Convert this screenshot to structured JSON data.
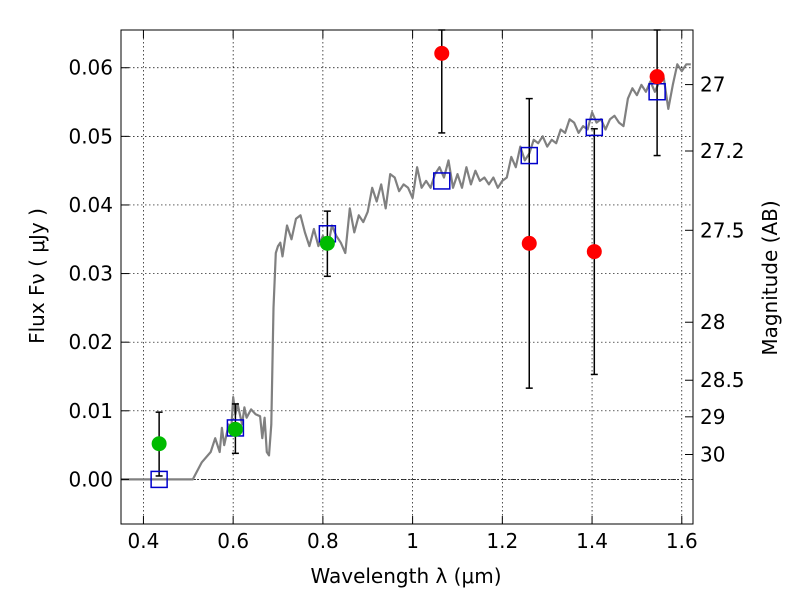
{
  "chart_data": {
    "type": "scatter",
    "title": "",
    "xlabel": "Wavelength  λ (μm)",
    "ylabel": "Flux  Fν  ( μJy )",
    "y2label": "Magnitude (AB)",
    "xlim": [
      0.35,
      1.625
    ],
    "ylim": [
      -0.0065,
      0.0655
    ],
    "grid": true,
    "x_ticks": [
      0.4,
      0.6,
      0.8,
      1.0,
      1.2,
      1.4,
      1.6
    ],
    "x_tick_labels": [
      "0.4",
      "0.6",
      "0.8",
      "1",
      "1.2",
      "1.4",
      "1.6"
    ],
    "y_ticks": [
      0.0,
      0.01,
      0.02,
      0.03,
      0.04,
      0.05,
      0.06
    ],
    "y_tick_labels": [
      "0.00",
      "0.01",
      "0.02",
      "0.03",
      "0.04",
      "0.05",
      "0.06"
    ],
    "y2_tick_labels": [
      "27",
      "27.2",
      "27.5",
      "28",
      "28.5",
      "29",
      "30"
    ],
    "colors": {
      "model": "#808080",
      "detected": "#00bb00",
      "limit": "#ff0000",
      "model_band": "#0000cc",
      "errorbar": "#000000"
    },
    "series": [
      {
        "type": "line",
        "x": [
          0.35,
          0.51,
          0.53,
          0.55,
          0.56,
          0.57,
          0.575,
          0.58,
          0.59,
          0.595,
          0.6,
          0.605,
          0.61,
          0.62,
          0.625,
          0.63,
          0.64,
          0.65,
          0.66,
          0.665,
          0.67,
          0.675,
          0.68,
          0.685,
          0.69,
          0.695,
          0.7,
          0.705,
          0.71,
          0.72,
          0.73,
          0.74,
          0.75,
          0.76,
          0.77,
          0.78,
          0.79,
          0.8,
          0.81,
          0.82,
          0.83,
          0.84,
          0.85,
          0.86,
          0.87,
          0.88,
          0.89,
          0.9,
          0.91,
          0.92,
          0.93,
          0.94,
          0.95,
          0.96,
          0.97,
          0.98,
          0.99,
          1.0,
          1.01,
          1.02,
          1.03,
          1.04,
          1.05,
          1.06,
          1.07,
          1.08,
          1.09,
          1.1,
          1.11,
          1.12,
          1.13,
          1.14,
          1.15,
          1.16,
          1.17,
          1.18,
          1.19,
          1.2,
          1.21,
          1.22,
          1.23,
          1.24,
          1.25,
          1.26,
          1.27,
          1.28,
          1.29,
          1.3,
          1.31,
          1.32,
          1.33,
          1.34,
          1.35,
          1.36,
          1.37,
          1.38,
          1.39,
          1.4,
          1.41,
          1.42,
          1.43,
          1.44,
          1.45,
          1.46,
          1.47,
          1.48,
          1.49,
          1.5,
          1.51,
          1.52,
          1.53,
          1.54,
          1.55,
          1.56,
          1.57,
          1.58,
          1.59,
          1.6,
          1.61,
          1.62
        ],
        "y": [
          0.0,
          0.0,
          0.0025,
          0.004,
          0.006,
          0.004,
          0.0075,
          0.005,
          0.008,
          0.0065,
          0.012,
          0.0095,
          0.011,
          0.008,
          0.0105,
          0.009,
          0.0102,
          0.0095,
          0.0092,
          0.006,
          0.009,
          0.004,
          0.0035,
          0.008,
          0.025,
          0.033,
          0.034,
          0.0345,
          0.0325,
          0.037,
          0.035,
          0.038,
          0.0385,
          0.036,
          0.034,
          0.0365,
          0.034,
          0.0355,
          0.0335,
          0.037,
          0.0355,
          0.0345,
          0.033,
          0.0395,
          0.036,
          0.0385,
          0.0375,
          0.039,
          0.0425,
          0.0405,
          0.043,
          0.0395,
          0.0445,
          0.044,
          0.042,
          0.043,
          0.0425,
          0.041,
          0.0455,
          0.0425,
          0.0435,
          0.0425,
          0.0445,
          0.0455,
          0.044,
          0.0465,
          0.0425,
          0.0445,
          0.0425,
          0.0455,
          0.043,
          0.045,
          0.0435,
          0.044,
          0.043,
          0.044,
          0.0425,
          0.0435,
          0.044,
          0.047,
          0.0455,
          0.0485,
          0.0465,
          0.0475,
          0.0495,
          0.049,
          0.05,
          0.0485,
          0.0495,
          0.049,
          0.051,
          0.0505,
          0.0525,
          0.052,
          0.0505,
          0.0515,
          0.051,
          0.0535,
          0.052,
          0.0525,
          0.051,
          0.0525,
          0.053,
          0.052,
          0.0515,
          0.0555,
          0.057,
          0.056,
          0.0575,
          0.0565,
          0.058,
          0.0565,
          0.058,
          0.0585,
          0.054,
          0.0575,
          0.0605,
          0.0595,
          0.0605,
          0.0605
        ]
      },
      {
        "type": "model_band",
        "marker": "open-square",
        "x": [
          0.435,
          0.605,
          0.81,
          1.065,
          1.26,
          1.405,
          1.545
        ],
        "y": [
          0.0,
          0.0075,
          0.0358,
          0.0435,
          0.0472,
          0.0513,
          0.0565
        ]
      },
      {
        "type": "detected",
        "marker": "filled-circle",
        "x": [
          0.435,
          0.605,
          0.81
        ],
        "y": [
          0.0052,
          0.0073,
          0.0344
        ],
        "yerr_low": [
          0.0047,
          0.0035,
          0.0048
        ],
        "yerr_high": [
          0.0046,
          0.0037,
          0.0047
        ]
      },
      {
        "type": "limit",
        "marker": "filled-circle",
        "x": [
          1.065,
          1.26,
          1.405,
          1.545
        ],
        "y": [
          0.0621,
          0.0344,
          0.0332,
          0.0587
        ],
        "yerr_low": [
          0.0116,
          0.0211,
          0.0179,
          0.0115
        ],
        "yerr_high": [
          0.0034,
          0.0211,
          0.0179,
          0.0068
        ]
      }
    ]
  }
}
